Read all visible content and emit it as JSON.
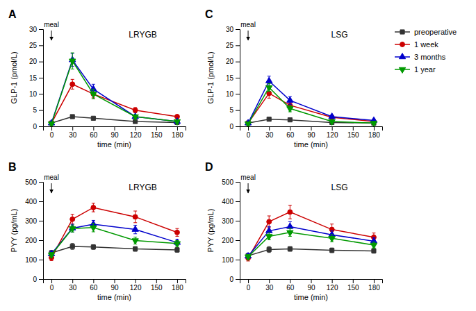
{
  "chart_data": [
    {
      "type": "line",
      "title": "LRYGB",
      "xlabel": "time (min)",
      "ylabel": "GLP-1 (pmol/L)",
      "annotations": [
        {
          "text": "A"
        },
        {
          "text": "meal",
          "x": 0
        }
      ],
      "x": [
        0,
        30,
        60,
        120,
        180
      ],
      "xlim": [
        -12,
        192
      ],
      "xticks": [
        0,
        30,
        60,
        90,
        120,
        150,
        180
      ],
      "ylim": [
        0,
        30
      ],
      "yticks": [
        0,
        5,
        10,
        15,
        20,
        25,
        30
      ],
      "grid": false,
      "series": [
        {
          "name": "preoperative",
          "color": "#333333",
          "marker": "square",
          "values": [
            1.0,
            3.0,
            2.5,
            1.5,
            1.2
          ],
          "errors": [
            0.2,
            0.5,
            0.4,
            0.3,
            0.2
          ]
        },
        {
          "name": "1 week",
          "color": "#cc0000",
          "marker": "circle",
          "values": [
            1.0,
            13.0,
            10.0,
            5.0,
            3.0
          ],
          "errors": [
            0.3,
            1.5,
            1.2,
            0.8,
            0.5
          ]
        },
        {
          "name": "3 months",
          "color": "#0000cc",
          "marker": "triangle-up",
          "values": [
            1.0,
            20.5,
            11.5,
            3.0,
            1.5
          ],
          "errors": [
            0.3,
            2.0,
            1.5,
            0.5,
            0.3
          ]
        },
        {
          "name": "1 year",
          "color": "#009900",
          "marker": "triangle-down",
          "values": [
            0.8,
            20.2,
            10.0,
            3.0,
            1.5
          ],
          "errors": [
            0.2,
            2.5,
            1.5,
            0.5,
            0.3
          ]
        }
      ]
    },
    {
      "type": "line",
      "title": "LRYGB",
      "xlabel": "time (min)",
      "ylabel": "PYY (pg/mL)",
      "annotations": [
        {
          "text": "B"
        },
        {
          "text": "meal",
          "x": 0
        }
      ],
      "x": [
        0,
        30,
        60,
        120,
        180
      ],
      "xlim": [
        -12,
        192
      ],
      "xticks": [
        0,
        30,
        60,
        90,
        120,
        150,
        180
      ],
      "ylim": [
        0,
        500
      ],
      "yticks": [
        0,
        100,
        200,
        300,
        400,
        500
      ],
      "grid": false,
      "series": [
        {
          "name": "preoperative",
          "color": "#333333",
          "marker": "square",
          "values": [
            135,
            168,
            165,
            155,
            150
          ],
          "errors": [
            12,
            15,
            12,
            12,
            12
          ]
        },
        {
          "name": "1 week",
          "color": "#cc0000",
          "marker": "circle",
          "values": [
            110,
            308,
            368,
            320,
            240
          ],
          "errors": [
            15,
            25,
            22,
            30,
            20
          ]
        },
        {
          "name": "3 months",
          "color": "#0000cc",
          "marker": "triangle-up",
          "values": [
            130,
            262,
            282,
            255,
            188
          ],
          "errors": [
            12,
            20,
            20,
            22,
            15
          ]
        },
        {
          "name": "1 year",
          "color": "#009900",
          "marker": "triangle-down",
          "values": [
            125,
            260,
            265,
            198,
            183
          ],
          "errors": [
            12,
            18,
            22,
            18,
            15
          ]
        }
      ]
    },
    {
      "type": "line",
      "title": "LSG",
      "xlabel": "time (min)",
      "ylabel": "GLP-1 (pmol/L)",
      "annotations": [
        {
          "text": "C"
        },
        {
          "text": "meal",
          "x": 0
        }
      ],
      "x": [
        0,
        30,
        60,
        120,
        180
      ],
      "xlim": [
        -12,
        192
      ],
      "xticks": [
        0,
        30,
        60,
        90,
        120,
        150,
        180
      ],
      "ylim": [
        0,
        30
      ],
      "yticks": [
        0,
        5,
        10,
        15,
        20,
        25,
        30
      ],
      "grid": false,
      "legend": "right",
      "series": [
        {
          "name": "preoperative",
          "color": "#333333",
          "marker": "square",
          "values": [
            1.0,
            2.2,
            2.0,
            1.2,
            1.0
          ],
          "errors": [
            0.2,
            0.4,
            0.3,
            0.2,
            0.2
          ]
        },
        {
          "name": "1 week",
          "color": "#cc0000",
          "marker": "circle",
          "values": [
            1.0,
            10.2,
            6.5,
            2.8,
            1.5
          ],
          "errors": [
            0.2,
            1.5,
            1.0,
            0.5,
            0.3
          ]
        },
        {
          "name": "3 months",
          "color": "#0000cc",
          "marker": "triangle-up",
          "values": [
            1.0,
            14.0,
            8.0,
            3.0,
            1.8
          ],
          "errors": [
            0.3,
            1.5,
            1.2,
            0.5,
            0.3
          ]
        },
        {
          "name": "1 year",
          "color": "#009900",
          "marker": "triangle-down",
          "values": [
            0.8,
            12.0,
            5.5,
            1.5,
            1.0
          ],
          "errors": [
            0.2,
            1.2,
            1.0,
            0.3,
            0.2
          ]
        }
      ]
    },
    {
      "type": "line",
      "title": "LSG",
      "xlabel": "time (min)",
      "ylabel": "PYY (pg/mL)",
      "annotations": [
        {
          "text": "D"
        },
        {
          "text": "meal",
          "x": 0
        }
      ],
      "x": [
        0,
        30,
        60,
        120,
        180
      ],
      "xlim": [
        -12,
        192
      ],
      "xticks": [
        0,
        30,
        60,
        90,
        120,
        150,
        180
      ],
      "ylim": [
        0,
        500
      ],
      "yticks": [
        0,
        100,
        200,
        300,
        400,
        500
      ],
      "grid": false,
      "series": [
        {
          "name": "preoperative",
          "color": "#333333",
          "marker": "square",
          "values": [
            120,
            152,
            155,
            148,
            145
          ],
          "errors": [
            12,
            15,
            12,
            12,
            12
          ]
        },
        {
          "name": "1 week",
          "color": "#cc0000",
          "marker": "circle",
          "values": [
            108,
            295,
            345,
            255,
            215
          ],
          "errors": [
            15,
            30,
            35,
            28,
            22
          ]
        },
        {
          "name": "3 months",
          "color": "#0000cc",
          "marker": "triangle-up",
          "values": [
            118,
            248,
            270,
            228,
            195
          ],
          "errors": [
            12,
            22,
            25,
            20,
            18
          ]
        },
        {
          "name": "1 year",
          "color": "#009900",
          "marker": "triangle-down",
          "values": [
            115,
            220,
            240,
            210,
            175
          ],
          "errors": [
            12,
            18,
            20,
            18,
            15
          ]
        }
      ]
    }
  ]
}
